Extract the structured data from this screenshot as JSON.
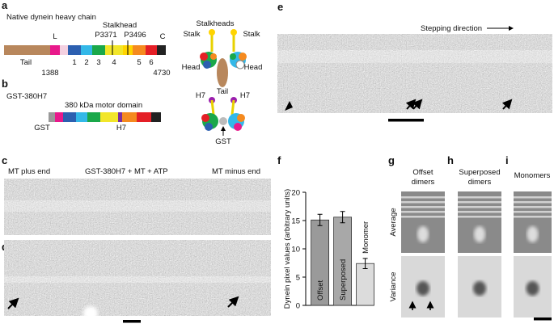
{
  "panel_a": {
    "label": "a",
    "title": "Native dynein heavy chain",
    "tail": "Tail",
    "linker": "L",
    "c_term": "C",
    "aaa": [
      "1",
      "2",
      "3",
      "4",
      "5",
      "6"
    ],
    "stalkhead": "Stalkhead",
    "p3371": "P3371",
    "p3496": "P3496",
    "start": "1388",
    "end": "4730",
    "cartoon": {
      "stalkheads": "Stalkheads",
      "stalk_left": "Stalk",
      "stalk_right": "Stalk",
      "head_left": "Head",
      "head_right": "Head",
      "tail": "Tail"
    }
  },
  "panel_b": {
    "label": "b",
    "title": "GST-380H7",
    "domain": "380 kDa motor domain",
    "gst": "GST",
    "h7": "H7",
    "cartoon": {
      "h7_left": "H7",
      "h7_right": "H7",
      "gst": "GST"
    }
  },
  "panel_c": {
    "label": "c",
    "plus": "MT plus end",
    "condition": "GST-380H7 + MT + ATP",
    "minus": "MT minus end"
  },
  "panel_d": {
    "label": "d"
  },
  "panel_e": {
    "label": "e",
    "direction": "Stepping direction"
  },
  "panel_f": {
    "label": "f"
  },
  "panel_g": {
    "label": "g",
    "title": "Offset\ndimers",
    "average": "Average",
    "variance": "Variance"
  },
  "panel_h": {
    "label": "h",
    "title": "Superposed\ndimers"
  },
  "panel_i": {
    "label": "i",
    "title": "Monomers"
  },
  "chart_data": {
    "type": "bar",
    "y_label": "Dynein pixel values (arbitrary units)",
    "categories": [
      "Offset",
      "Superposed",
      "Monomer"
    ],
    "values": [
      15.1,
      15.6,
      7.4
    ],
    "errors": [
      1.0,
      1.0,
      0.9
    ],
    "colors": [
      "#9a9a9a",
      "#a8a8a8",
      "#dcdcdc"
    ],
    "ylim": [
      0,
      20
    ],
    "yticks": [
      0,
      5,
      10,
      15,
      20
    ]
  }
}
